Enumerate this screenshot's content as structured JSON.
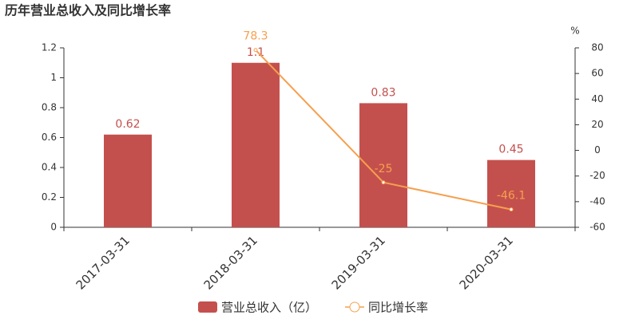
{
  "chart_data": {
    "type": "bar",
    "title": "历年营业总收入及同比增长率",
    "categories": [
      "2017-03-31",
      "2018-03-31",
      "2019-03-31",
      "2020-03-31"
    ],
    "series": [
      {
        "name": "营业总收入（亿）",
        "type": "bar",
        "color": "#c4504d",
        "values": [
          0.62,
          1.1,
          0.83,
          0.45
        ]
      },
      {
        "name": "同比增长率",
        "type": "line",
        "axis": "y2",
        "color": "#f5a04f",
        "values": [
          null,
          78.3,
          -25,
          -46.1
        ]
      }
    ],
    "ylim": [
      0,
      1.2
    ],
    "yticks": [
      0,
      0.2,
      0.4,
      0.6,
      0.8,
      1,
      1.2
    ],
    "y2lim": [
      -60,
      80
    ],
    "y2ticks": [
      -60,
      -40,
      -20,
      0,
      20,
      40,
      60,
      80
    ],
    "y2_unit": "%"
  }
}
